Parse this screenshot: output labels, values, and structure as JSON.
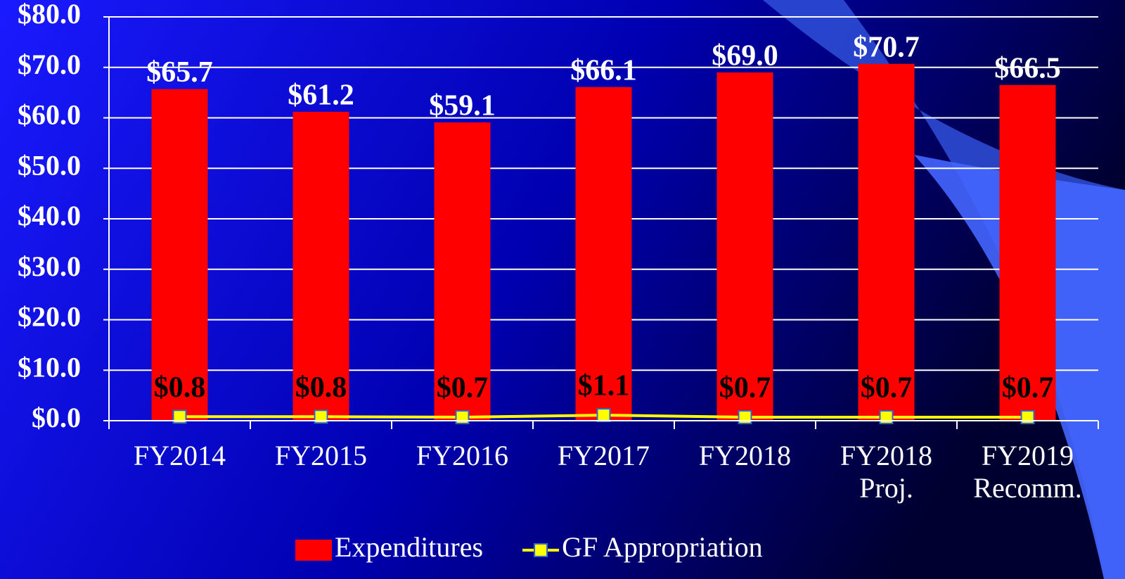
{
  "chart_data": {
    "type": "bar",
    "categories": [
      "FY2014",
      "FY2015",
      "FY2016",
      "FY2017",
      "FY2018",
      "FY2018 Proj.",
      "FY2019 Recomm."
    ],
    "series": [
      {
        "name": "Expenditures",
        "type": "bar",
        "color": "#ff0000",
        "values": [
          65.7,
          61.2,
          59.1,
          66.1,
          69.0,
          70.7,
          66.5
        ],
        "value_labels": [
          "$65.7",
          "$61.2",
          "$59.1",
          "$66.1",
          "$69.0",
          "$70.7",
          "$66.5"
        ]
      },
      {
        "name": "GF Appropriation",
        "type": "line",
        "color": "#ffff00",
        "values": [
          0.8,
          0.8,
          0.7,
          1.1,
          0.7,
          0.7,
          0.7
        ],
        "value_labels": [
          "$0.8",
          "$0.8",
          "$0.7",
          "$1.1",
          "$0.7",
          "$0.7",
          "$0.7"
        ]
      }
    ],
    "ylim": [
      0,
      80
    ],
    "yticks": [
      {
        "value": 0,
        "label": "$0.0"
      },
      {
        "value": 10,
        "label": "$10.0"
      },
      {
        "value": 20,
        "label": "$20.0"
      },
      {
        "value": 30,
        "label": "$30.0"
      },
      {
        "value": 40,
        "label": "$40.0"
      },
      {
        "value": 50,
        "label": "$50.0"
      },
      {
        "value": 60,
        "label": "$60.0"
      },
      {
        "value": 70,
        "label": "$70.0"
      },
      {
        "value": 80,
        "label": "$80.0"
      }
    ],
    "grid": true,
    "legend": "bottom"
  }
}
